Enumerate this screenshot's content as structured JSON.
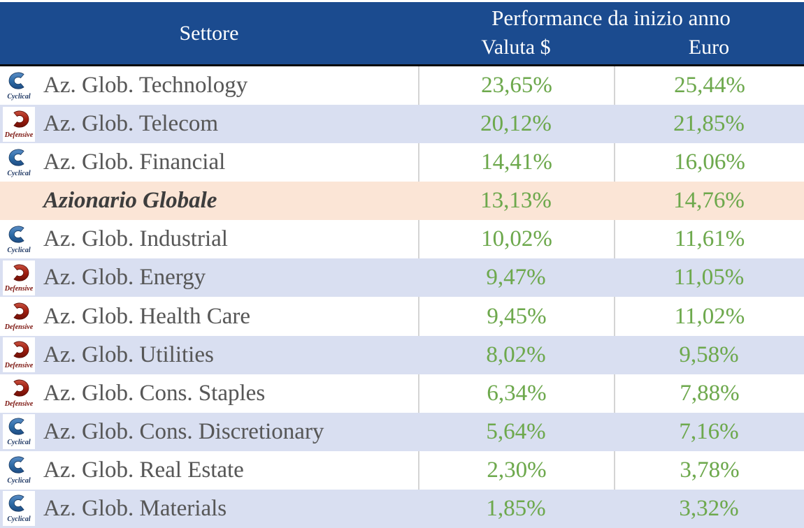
{
  "table": {
    "header": {
      "settore": "Settore",
      "performance": "Performance da inizio anno",
      "col_valuta": "Valuta $",
      "col_euro": "Euro"
    },
    "icon_labels": {
      "cyclical": "Cyclical",
      "defensive": "Defensive"
    },
    "rows": [
      {
        "icon": "cyclical",
        "label": "Az. Glob. Technology",
        "valuta": "23,65%",
        "euro": "25,44%",
        "shade": "white",
        "emphasis": false
      },
      {
        "icon": "defensive",
        "label": "Az. Glob. Telecom",
        "valuta": "20,12%",
        "euro": "21,85%",
        "shade": "blue",
        "emphasis": false
      },
      {
        "icon": "cyclical",
        "label": "Az. Glob. Financial",
        "valuta": "14,41%",
        "euro": "16,06%",
        "shade": "white",
        "emphasis": false
      },
      {
        "icon": null,
        "label": "Azionario Globale",
        "valuta": "13,13%",
        "euro": "14,76%",
        "shade": "peach",
        "emphasis": true
      },
      {
        "icon": "cyclical",
        "label": "Az. Glob. Industrial",
        "valuta": "10,02%",
        "euro": "11,61%",
        "shade": "white",
        "emphasis": false
      },
      {
        "icon": "defensive",
        "label": "Az. Glob. Energy",
        "valuta": "9,47%",
        "euro": "11,05%",
        "shade": "blue",
        "emphasis": false
      },
      {
        "icon": "defensive",
        "label": "Az. Glob. Health Care",
        "valuta": "9,45%",
        "euro": "11,02%",
        "shade": "white",
        "emphasis": false
      },
      {
        "icon": "defensive",
        "label": "Az. Glob. Utilities",
        "valuta": "8,02%",
        "euro": "9,58%",
        "shade": "blue",
        "emphasis": false
      },
      {
        "icon": "defensive",
        "label": "Az. Glob. Cons. Staples",
        "valuta": "6,34%",
        "euro": "7,88%",
        "shade": "white",
        "emphasis": false
      },
      {
        "icon": "cyclical",
        "label": "Az. Glob. Cons. Discretionary",
        "valuta": "5,64%",
        "euro": "7,16%",
        "shade": "blue",
        "emphasis": false
      },
      {
        "icon": "cyclical",
        "label": "Az. Glob. Real Estate",
        "valuta": "2,30%",
        "euro": "3,78%",
        "shade": "white",
        "emphasis": false
      },
      {
        "icon": "cyclical",
        "label": "Az. Glob. Materials",
        "valuta": "1,85%",
        "euro": "3,32%",
        "shade": "blue",
        "emphasis": false
      }
    ]
  },
  "colors": {
    "header_bg": "#1B4B8F",
    "header_text": "#FFFFFF",
    "row_alt_bg": "#D9DFF1",
    "highlight_bg": "#FBE5D6",
    "value_green": "#6DA94C",
    "label_gray": "#575757",
    "emphasis_gray": "#3D3D3D",
    "divider_gray": "#D4D4D4",
    "header_underline": "#0A0A0A",
    "cyclical_blue": "#2F6DA8",
    "defensive_red": "#A01E10"
  }
}
